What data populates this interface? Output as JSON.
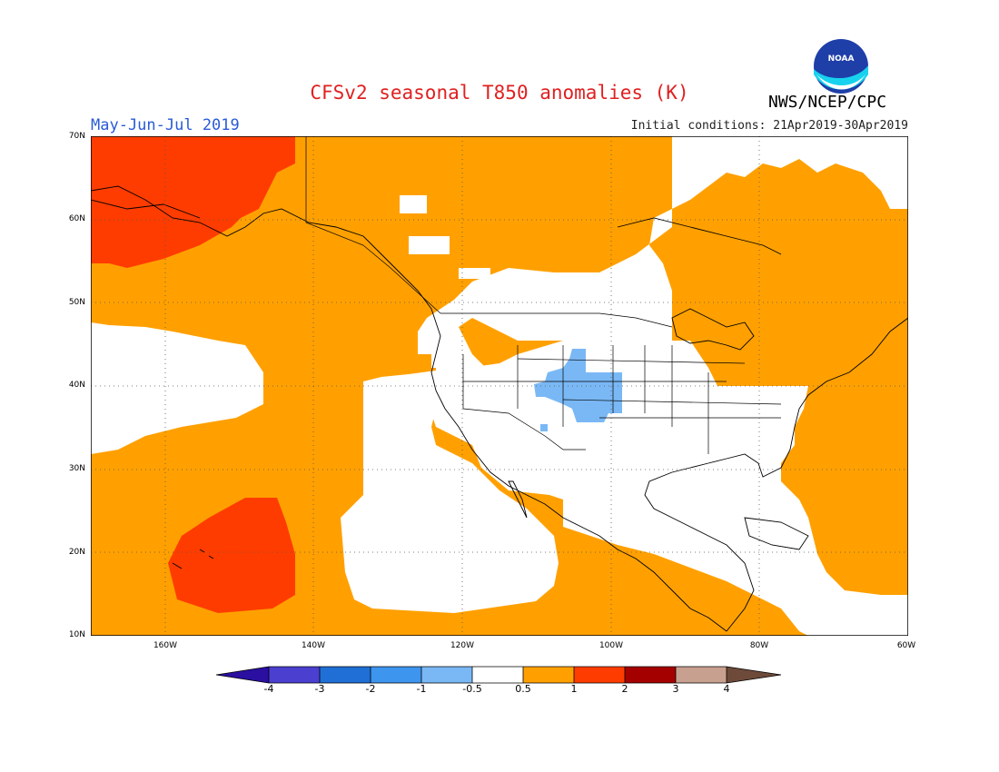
{
  "header": {
    "title": "CFSv2 seasonal T850 anomalies (K)",
    "season": "May-Jun-Jul 2019",
    "initial_conditions": "Initial conditions: 21Apr2019-30Apr2019",
    "agency": "NWS/NCEP/CPC",
    "logo_text": "NOAA"
  },
  "map": {
    "lat_labels": [
      "70N",
      "60N",
      "50N",
      "40N",
      "30N",
      "20N",
      "10N"
    ],
    "lon_labels": [
      "160W",
      "140W",
      "120W",
      "100W",
      "80W",
      "60W"
    ]
  },
  "colorbar": {
    "labels": [
      "-4",
      "-3",
      "-2",
      "-1",
      "-0.5",
      "0.5",
      "1",
      "2",
      "3",
      "4"
    ],
    "colors": {
      "lt_m4": "#2a0fa0",
      "m4_m3": "#4b3fcf",
      "m3_m2": "#1f6fd6",
      "m2_m1": "#3d95ee",
      "m1_m05": "#7ab8f5",
      "m05_05": "#ffffff",
      "p05_1": "#ffa000",
      "p1_2": "#ff3c00",
      "p2_3": "#a50000",
      "p3_4": "#c8a090",
      "gt_4": "#6e4a3a"
    }
  }
}
